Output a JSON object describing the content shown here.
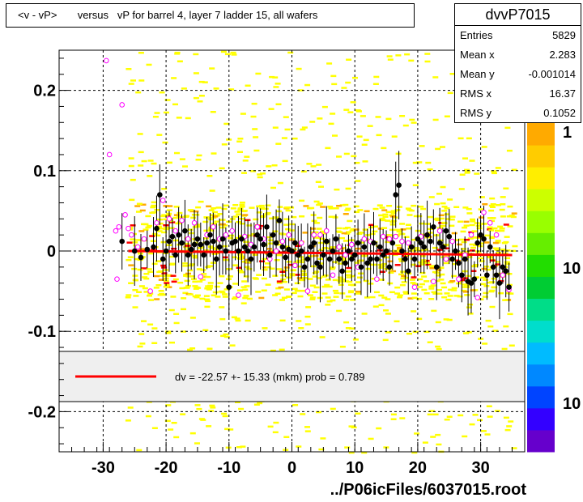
{
  "title": "<v - vP>       versus   vP for barrel 4, layer 7 ladder 15, all wafers",
  "stats": {
    "name": "dvvP7015",
    "rows": [
      {
        "label": "Entries",
        "value": "5829"
      },
      {
        "label": "Mean x",
        "value": "2.283"
      },
      {
        "label": "Mean y",
        "value": "-0.001014"
      },
      {
        "label": "RMS x",
        "value": "16.37"
      },
      {
        "label": "RMS y",
        "value": "0.1052"
      }
    ]
  },
  "fit_label": "dv =  -22.57 +- 15.33 (mkm) prob = 0.789",
  "xlabel": "../P06icFiles/6037015.root",
  "colorbar_labels": [
    "1",
    "10",
    "10"
  ],
  "colors": {
    "fit_line": "#ff0000",
    "density_low": "#ffff00",
    "density_high": "#ff0000",
    "black_points": "#000000",
    "open_points": "#ff00ff"
  },
  "chart_data": {
    "type": "scatter",
    "xlim": [
      -37,
      37
    ],
    "ylim": [
      -0.25,
      0.25
    ],
    "x_ticks": [
      -30,
      -20,
      -10,
      0,
      10,
      20,
      30
    ],
    "y_ticks": [
      -0.2,
      -0.1,
      0,
      0.1,
      0.2
    ],
    "x_tick_labels": [
      "-30",
      "-20",
      "-10",
      "0",
      "10",
      "20",
      "30"
    ],
    "y_tick_labels": [
      "-0.2",
      "-0.1",
      "0",
      "0.1",
      "0.2"
    ],
    "grid": true,
    "fit_line": {
      "x": [
        -26,
        35
      ],
      "y": [
        -0.0226,
        -0.0226
      ],
      "y_plot": [
        0.0,
        -0.005
      ]
    },
    "black_points": [
      [
        -27,
        0.012
      ],
      [
        -25,
        0.0
      ],
      [
        -24,
        -0.008
      ],
      [
        -23,
        0.002
      ],
      [
        -22,
        0.005
      ],
      [
        -21.5,
        0.028
      ],
      [
        -21,
        0.07
      ],
      [
        -20.5,
        -0.01
      ],
      [
        -20,
        0.0
      ],
      [
        -19.5,
        0.012
      ],
      [
        -19,
        0.018
      ],
      [
        -18.5,
        -0.005
      ],
      [
        -18,
        0.02
      ],
      [
        -17.5,
        0.01
      ],
      [
        -17,
        0.025
      ],
      [
        -16.5,
        -0.005
      ],
      [
        -16,
        0.002
      ],
      [
        -15.5,
        0.008
      ],
      [
        -15,
        0.015
      ],
      [
        -14.5,
        0.008
      ],
      [
        -14,
        -0.005
      ],
      [
        -13.5,
        0.01
      ],
      [
        -13,
        0.02
      ],
      [
        -12.5,
        0.012
      ],
      [
        -12,
        -0.01
      ],
      [
        -11.5,
        0.005
      ],
      [
        -11,
        0.015
      ],
      [
        -10.5,
        0.0
      ],
      [
        -10,
        -0.045
      ],
      [
        -9.5,
        0.01
      ],
      [
        -9,
        0.012
      ],
      [
        -8.5,
        0.0
      ],
      [
        -8,
        0.015
      ],
      [
        -7.5,
        0.005
      ],
      [
        -7,
        0.0
      ],
      [
        -6.5,
        -0.01
      ],
      [
        -6,
        0.005
      ],
      [
        -5.5,
        0.02
      ],
      [
        -5,
        0.015
      ],
      [
        -4.5,
        0.008
      ],
      [
        -4,
        0.03
      ],
      [
        -3.5,
        -0.005
      ],
      [
        -3,
        0.02
      ],
      [
        -2.5,
        0.01
      ],
      [
        -2,
        0.038
      ],
      [
        -1.5,
        0.005
      ],
      [
        -1,
        -0.008
      ],
      [
        -0.5,
        0.002
      ],
      [
        0,
        0.0
      ],
      [
        0.5,
        0.01
      ],
      [
        1,
        -0.005
      ],
      [
        1.5,
        0.0
      ],
      [
        2,
        -0.02
      ],
      [
        2.5,
        -0.01
      ],
      [
        3,
        0.005
      ],
      [
        3.5,
        0.01
      ],
      [
        4,
        -0.015
      ],
      [
        4.5,
        -0.02
      ],
      [
        5,
        -0.005
      ],
      [
        5.5,
        0.012
      ],
      [
        6,
        -0.01
      ],
      [
        6.5,
        0.0
      ],
      [
        7,
        0.015
      ],
      [
        7.5,
        -0.01
      ],
      [
        8,
        -0.025
      ],
      [
        8.5,
        -0.015
      ],
      [
        9,
        0.0
      ],
      [
        9.5,
        -0.01
      ],
      [
        10,
        -0.005
      ],
      [
        10.5,
        0.01
      ],
      [
        11,
        -0.02
      ],
      [
        11.5,
        0.005
      ],
      [
        12,
        -0.015
      ],
      [
        12.5,
        -0.01
      ],
      [
        13,
        0.01
      ],
      [
        13.5,
        -0.01
      ],
      [
        14,
        0.005
      ],
      [
        14.5,
        -0.005
      ],
      [
        15,
        0.0
      ],
      [
        15.5,
        -0.02
      ],
      [
        16,
        0.01
      ],
      [
        16.5,
        0.07
      ],
      [
        17,
        0.082
      ],
      [
        17.5,
        0.0
      ],
      [
        18,
        -0.01
      ],
      [
        18.5,
        -0.025
      ],
      [
        19,
        0.005
      ],
      [
        19.5,
        -0.01
      ],
      [
        20,
        0.015
      ],
      [
        20.5,
        0.01
      ],
      [
        21,
        0.005
      ],
      [
        21.5,
        0.02
      ],
      [
        22,
        0.012
      ],
      [
        22.5,
        0.03
      ],
      [
        23,
        -0.02
      ],
      [
        23.5,
        0.01
      ],
      [
        24,
        0.005
      ],
      [
        24.5,
        0.025
      ],
      [
        25,
        0.018
      ],
      [
        25.5,
        -0.01
      ],
      [
        26,
        0.0
      ],
      [
        26.5,
        -0.015
      ],
      [
        27,
        -0.03
      ],
      [
        27.5,
        -0.01
      ],
      [
        28,
        -0.038
      ],
      [
        28.5,
        -0.04
      ],
      [
        29,
        -0.035
      ],
      [
        29.5,
        0.01
      ],
      [
        30,
        0.02
      ],
      [
        30.5,
        0.015
      ],
      [
        31,
        -0.03
      ],
      [
        31.5,
        0.005
      ],
      [
        32,
        -0.02
      ],
      [
        32.5,
        -0.03
      ],
      [
        33,
        -0.04
      ],
      [
        33.5,
        -0.02
      ],
      [
        34,
        -0.025
      ],
      [
        34.5,
        -0.045
      ]
    ],
    "open_points": [
      [
        -29.5,
        0.237
      ],
      [
        -29,
        0.12
      ],
      [
        -27,
        0.182
      ],
      [
        -28,
        0.025
      ],
      [
        -27.5,
        0.03
      ],
      [
        -26.5,
        0.045
      ],
      [
        -26,
        0.028
      ],
      [
        -27.8,
        -0.035
      ],
      [
        -25.5,
        0.02
      ],
      [
        -24.5,
        0.005
      ],
      [
        -23.5,
        0.015
      ],
      [
        -22.5,
        -0.05
      ],
      [
        -21.5,
        0.035
      ],
      [
        -20.5,
        0.063
      ],
      [
        -19.5,
        0.04
      ],
      [
        -18.5,
        0.025
      ],
      [
        -17.5,
        0.038
      ],
      [
        -16.5,
        0.015
      ],
      [
        -15.5,
        0.035
      ],
      [
        -14.5,
        -0.032
      ],
      [
        -13.5,
        0.02
      ],
      [
        -12.5,
        0.03
      ],
      [
        -11.5,
        0.015
      ],
      [
        -10.5,
        0.02
      ],
      [
        -9.5,
        0.025
      ],
      [
        -8.5,
        -0.055
      ],
      [
        -7.5,
        0.018
      ],
      [
        -6.5,
        0.008
      ],
      [
        -5.5,
        0.03
      ],
      [
        -4.5,
        0.015
      ],
      [
        -3.5,
        -0.01
      ],
      [
        -2.5,
        0.0
      ],
      [
        -1.5,
        0.012
      ],
      [
        -0.5,
        0.02
      ],
      [
        0.5,
        -0.018
      ],
      [
        1.5,
        0.01
      ],
      [
        2.5,
        -0.05
      ],
      [
        3.5,
        0.02
      ],
      [
        4.5,
        0.02
      ],
      [
        5.5,
        0.025
      ],
      [
        6.5,
        -0.03
      ],
      [
        7.5,
        0.005
      ],
      [
        8.5,
        -0.005
      ],
      [
        9.5,
        0.008
      ],
      [
        10.5,
        -0.02
      ],
      [
        11.5,
        0.015
      ],
      [
        12.5,
        0.012
      ],
      [
        13.5,
        -0.035
      ],
      [
        14.5,
        0.018
      ],
      [
        15.5,
        0.015
      ],
      [
        16.5,
        0.018
      ],
      [
        17.5,
        0.012
      ],
      [
        18.5,
        0.01
      ],
      [
        19.5,
        -0.045
      ],
      [
        20.5,
        0.018
      ],
      [
        21.5,
        0.02
      ],
      [
        22.5,
        -0.038
      ],
      [
        23.5,
        0.025
      ],
      [
        24.5,
        -0.01
      ],
      [
        25.5,
        0.012
      ],
      [
        26.5,
        -0.035
      ],
      [
        27.5,
        -0.005
      ],
      [
        28.5,
        0.02
      ],
      [
        29.5,
        -0.058
      ],
      [
        30.5,
        0.048
      ],
      [
        31.5,
        0.035
      ],
      [
        32.5,
        0.02
      ],
      [
        33.5,
        -0.03
      ],
      [
        34.5,
        -0.048
      ]
    ]
  }
}
